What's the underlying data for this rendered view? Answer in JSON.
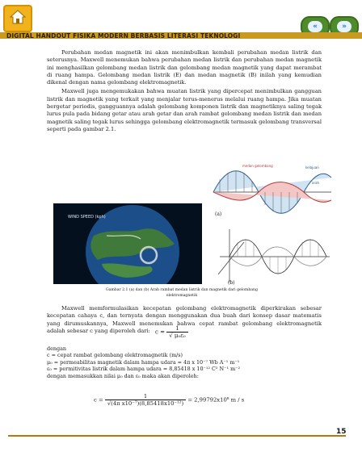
{
  "header": {
    "title": "DIGITAL HANDOUT FISIKA MODERN BERBASIS LITERASI TEKNOLOGI",
    "home_icon": "home-icon",
    "prev_icon": "double-chevron-left-icon",
    "next_icon": "double-chevron-right-icon",
    "nav_prev_glyph": "«",
    "nav_next_glyph": "»",
    "accent": "#c99a1f"
  },
  "body": {
    "p1": "Perubahan medan magnetik ini akan menimbulkan kembali perubahan medan listrik dan seterusnya. Maxwell menemukan bahwa perubahan medan listrik dan perubahan medan magnetik ini menghasilkan gelombang medan listrik dan gelombang medan magnetik yang dapat merambat di ruang hampa. Gelombang medan listrik (E) dan medan magnetik (B) inilah yang kemudian dikenal dengan nama gelombang elektromagnetik.",
    "p2": "Maxwell juga mengemukakan bahwa muatan listrik yang dipercepat menimbulkan gangguan listrik dan magnetik yang terkait yang menjalar terus-menerus melalui ruang hampa. Jika muatan bergetar periodis, gangguannya adalah gelombang komponen listrik dan magnetiknya saling tegak lurus pula pada bidang getar atau arah getar dan arah rambat gelombang medan listrik dan medan magnetik saling tegak lurus sehingga gelombang elektromagnetik termasuk gelombang transversal seperti pada gambar 2.1."
  },
  "figure": {
    "label_a": "(a)",
    "label_b": "(b)",
    "caption": "Gambar 2.1 (a) dan (b) Arah rambat medan listrik dan magnetik dari gelombang elektromagnetik",
    "wave_labels": [
      "medan gelombang",
      "kelajuan",
      "arah"
    ]
  },
  "body2": {
    "p3": "Maxwell memformulasikan kecepatan gelombang elektromagnetik diperkirakan sebesar kecepatan cahaya c, dan ternyata dengan menggunakan dua buah dari konsep dasar matematis yang dirumuskannya, Maxwell menemukan bahwa cepat rambat gelombang elektromagnetik adalah sebesar c yang diperoleh dari:"
  },
  "formula1": {
    "lhs": "c =",
    "num": "1",
    "den": "√ μ₀ε₀"
  },
  "definitions": {
    "intro": "dengan",
    "c": "c  = cepat rambat gelombang elektromagnetik (m/s)",
    "mu": "μ₀ = permeabilitas magnetik dalam hampa udara = 4π x 10⁻⁷ Wb A⁻¹ m⁻¹",
    "eps": "ε₀ = permitivitas listrik dalam hampa udara = 8,85418 x 10⁻¹² C² N⁻¹ m⁻²",
    "note": "dengan memasukkan nilai μ₀ dan ε₀ maka akan diperoleh:"
  },
  "formula2": {
    "lhs": "c =",
    "num": "1",
    "den": "√(4π x10⁻⁷)(8,85418x10⁻¹²)",
    "rhs": "= 2,99792x10⁸ m / s"
  },
  "page_number": "15"
}
